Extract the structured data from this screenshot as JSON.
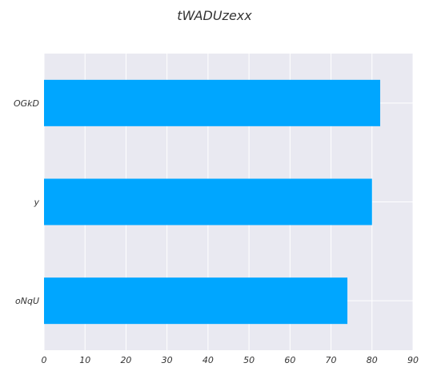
{
  "chart_data": {
    "type": "bar",
    "orientation": "horizontal",
    "title": "tWADUzexx",
    "xlabel": "",
    "ylabel": "",
    "categories": [
      "OGkD",
      "y",
      "oNqU"
    ],
    "values": [
      82,
      80,
      74
    ],
    "xlim": [
      0,
      90
    ],
    "xticks": [
      0,
      10,
      20,
      30,
      40,
      50,
      60,
      70,
      80,
      90
    ],
    "grid": true,
    "bar_color": "#00a6ff",
    "background_color": "#e9e9f1",
    "grid_color": "#ffffff"
  }
}
